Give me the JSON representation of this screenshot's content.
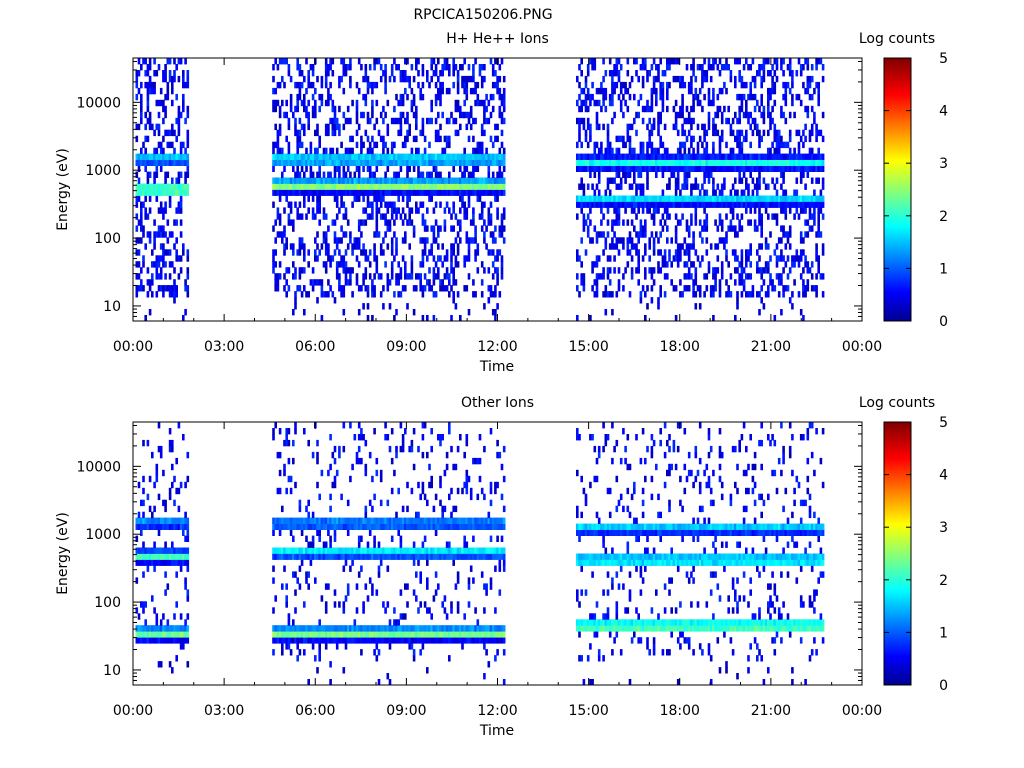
{
  "figure_title": "RPCICA150206.PNG",
  "colorbar_label": "Log counts",
  "colorbar_ticks": [
    "0",
    "1",
    "2",
    "3",
    "4",
    "5"
  ],
  "chart_data": [
    {
      "type": "heatmap",
      "title": "H+ He++ Ions",
      "xlabel": "Time",
      "ylabel": "Energy (eV)",
      "x_ticks": [
        "00:00",
        "03:00",
        "06:00",
        "09:00",
        "12:00",
        "15:00",
        "18:00",
        "21:00",
        "00:00"
      ],
      "y_ticks": [
        "10",
        "100",
        "1000",
        "10000"
      ],
      "y_scale": "log",
      "xlim": [
        "00:00",
        "24:00"
      ],
      "ylim": [
        6,
        45000
      ],
      "zlim": [
        0,
        5
      ],
      "colorbar_label": "Log counts",
      "data_intervals": [
        [
          "00:05",
          "01:50"
        ],
        [
          "04:35",
          "12:15"
        ],
        [
          "14:35",
          "22:45"
        ]
      ],
      "features": [
        {
          "time": [
            "00:05",
            "01:50"
          ],
          "energy_center": 1500,
          "log_counts": 1.6
        },
        {
          "time": [
            "00:05",
            "01:50"
          ],
          "energy_center": 520,
          "log_counts": 2.7
        },
        {
          "time": [
            "04:35",
            "12:15"
          ],
          "energy_center": 1450,
          "log_counts": 1.9
        },
        {
          "time": [
            "04:35",
            "12:15"
          ],
          "energy_center": 600,
          "log_counts": 2.6
        },
        {
          "time": [
            "14:35",
            "22:45"
          ],
          "energy_center": 1300,
          "log_counts": 1.9
        },
        {
          "time": [
            "14:35",
            "22:45"
          ],
          "energy_center": 380,
          "log_counts": 1.6
        }
      ]
    },
    {
      "type": "heatmap",
      "title": "Other Ions",
      "xlabel": "Time",
      "ylabel": "Energy (eV)",
      "x_ticks": [
        "00:00",
        "03:00",
        "06:00",
        "09:00",
        "12:00",
        "15:00",
        "18:00",
        "21:00",
        "00:00"
      ],
      "y_ticks": [
        "10",
        "100",
        "1000",
        "10000"
      ],
      "y_scale": "log",
      "xlim": [
        "00:00",
        "24:00"
      ],
      "ylim": [
        6,
        45000
      ],
      "zlim": [
        0,
        5
      ],
      "colorbar_label": "Log counts",
      "data_intervals": [
        [
          "00:05",
          "01:50"
        ],
        [
          "04:35",
          "12:15"
        ],
        [
          "14:35",
          "22:45"
        ]
      ],
      "features": [
        {
          "time": [
            "00:05",
            "01:50"
          ],
          "energy_center": 1500,
          "log_counts": 1.3
        },
        {
          "time": [
            "00:05",
            "01:50"
          ],
          "energy_center": 480,
          "log_counts": 2.1
        },
        {
          "time": [
            "00:05",
            "01:50"
          ],
          "energy_center": 35,
          "log_counts": 2.4
        },
        {
          "time": [
            "04:35",
            "12:15"
          ],
          "energy_center": 1450,
          "log_counts": 1.4
        },
        {
          "time": [
            "04:35",
            "12:15"
          ],
          "energy_center": 550,
          "log_counts": 1.8
        },
        {
          "time": [
            "04:35",
            "12:15"
          ],
          "energy_center": 35,
          "log_counts": 2.5
        },
        {
          "time": [
            "14:35",
            "22:45"
          ],
          "energy_center": 1250,
          "log_counts": 1.6
        },
        {
          "time": [
            "14:35",
            "22:45"
          ],
          "energy_center": 420,
          "log_counts": 2.1
        },
        {
          "time": [
            "14:35",
            "22:45"
          ],
          "energy_center": 45,
          "log_counts": 2.6
        }
      ]
    }
  ]
}
